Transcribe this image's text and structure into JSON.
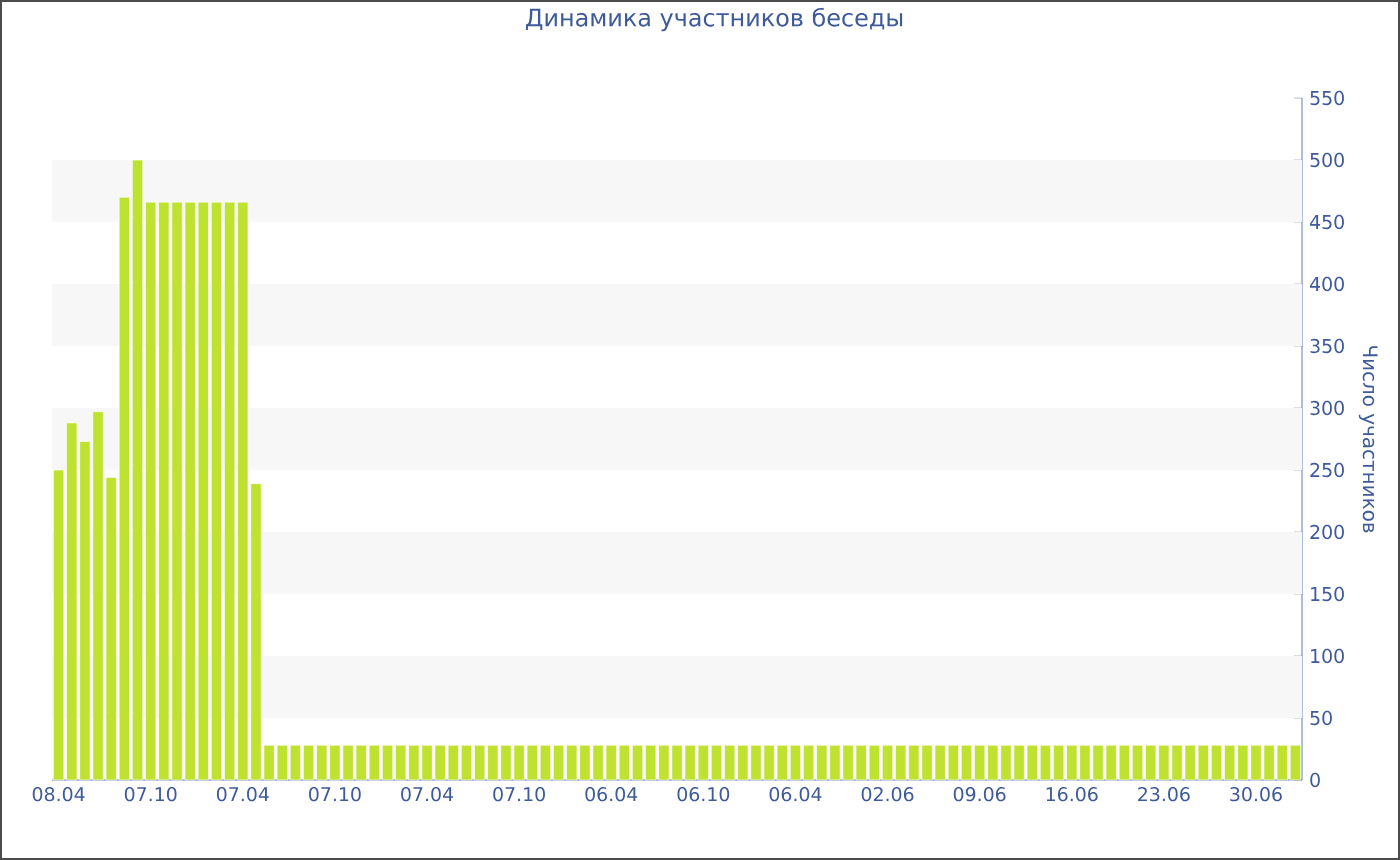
{
  "chart_data": {
    "type": "bar",
    "title": "Динамика участников беседы",
    "ylabel": "Число участников",
    "categories": [
      "08.04",
      null,
      null,
      null,
      null,
      null,
      null,
      "07.10",
      null,
      null,
      null,
      null,
      null,
      null,
      "07.04",
      null,
      null,
      null,
      null,
      null,
      null,
      "07.10",
      null,
      null,
      null,
      null,
      null,
      null,
      "07.04",
      null,
      null,
      null,
      null,
      null,
      null,
      "07.10",
      null,
      null,
      null,
      null,
      null,
      null,
      "06.04",
      null,
      null,
      null,
      null,
      null,
      null,
      "06.10",
      null,
      null,
      null,
      null,
      null,
      null,
      "06.04",
      null,
      null,
      null,
      null,
      null,
      null,
      "02.06",
      null,
      null,
      null,
      null,
      null,
      null,
      "09.06",
      null,
      null,
      null,
      null,
      null,
      null,
      "16.06",
      null,
      null,
      null,
      null,
      null,
      null,
      "23.06",
      null,
      null,
      null,
      null,
      null,
      null,
      "30.06",
      null,
      null,
      null
    ],
    "values": [
      250,
      288,
      273,
      297,
      244,
      470,
      500,
      466,
      466,
      466,
      466,
      466,
      466,
      466,
      466,
      239,
      28,
      28,
      28,
      28,
      28,
      28,
      28,
      28,
      28,
      28,
      28,
      28,
      28,
      28,
      28,
      28,
      28,
      28,
      28,
      28,
      28,
      28,
      28,
      28,
      28,
      28,
      28,
      28,
      28,
      28,
      28,
      28,
      28,
      28,
      28,
      28,
      28,
      28,
      28,
      28,
      28,
      28,
      28,
      28,
      28,
      28,
      28,
      28,
      28,
      28,
      28,
      28,
      28,
      28,
      28,
      28,
      28,
      28,
      28,
      28,
      28,
      28,
      28,
      28,
      28,
      28,
      28,
      28,
      28,
      28,
      28,
      28,
      28,
      28,
      28,
      28,
      28,
      28,
      28
    ],
    "color": "#bfe130",
    "ylim": [
      0,
      550
    ],
    "yticks": [
      0,
      50,
      100,
      150,
      200,
      250,
      300,
      350,
      400,
      450,
      500,
      550
    ],
    "bands": [
      {
        "axis": "y",
        "from": 50,
        "to": 100,
        "color": "#f7f7f7"
      },
      {
        "axis": "y",
        "from": 150,
        "to": 200,
        "color": "#f7f7f7"
      },
      {
        "axis": "y",
        "from": 250,
        "to": 300,
        "color": "#f7f7f7"
      },
      {
        "axis": "y",
        "from": 350,
        "to": 400,
        "color": "#f7f7f7"
      },
      {
        "axis": "y",
        "from": 450,
        "to": 500,
        "color": "#f7f7f7"
      }
    ]
  }
}
